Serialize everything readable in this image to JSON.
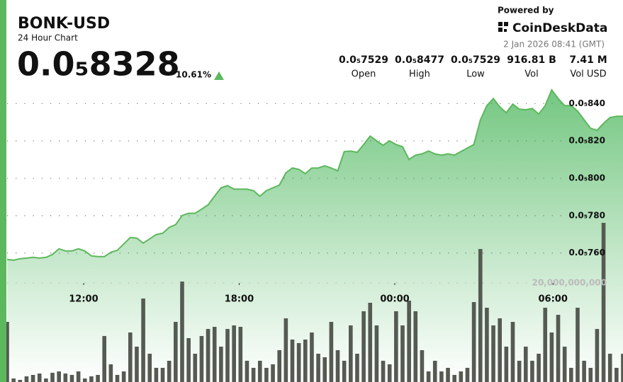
{
  "header": {
    "symbol": "BONK-USD",
    "subtitle": "24 Hour Chart",
    "price": "0.0₅8328",
    "change": "10.61%"
  },
  "brand": {
    "powered_by": "Powered by",
    "name": "CoinDeskData",
    "timestamp": "2 Jan 2026 08:41 (GMT)"
  },
  "stats": [
    {
      "value": "0.0₅7529",
      "label": "Open"
    },
    {
      "value": "0.0₅8477",
      "label": "High"
    },
    {
      "value": "0.0₅7529",
      "label": "Low"
    },
    {
      "value": "916.81 B",
      "label": "Vol"
    },
    {
      "value": "7.41 M",
      "label": "Vol USD"
    }
  ],
  "chart_data": {
    "type": "area",
    "grid": true,
    "xlim": [
      0,
      95
    ],
    "xticks": [
      {
        "value": 11.8,
        "label": "12:00"
      },
      {
        "value": 35.8,
        "label": "18:00"
      },
      {
        "value": 59.8,
        "label": "00:00"
      },
      {
        "value": 84.2,
        "label": "06:00"
      }
    ],
    "ylim": [
      6.91e-06,
      8.5e-06
    ],
    "yticks": [
      {
        "value": 7.6e-06,
        "label": "0.0₅760"
      },
      {
        "value": 7.8e-06,
        "label": "0.0₅780"
      },
      {
        "value": 8e-06,
        "label": "0.0₅800"
      },
      {
        "value": 8.2e-06,
        "label": "0.0₅820"
      },
      {
        "value": 8.4e-06,
        "label": "0.0₅840"
      }
    ],
    "y2lim": [
      0,
      60000000000
    ],
    "y2ticks": [
      {
        "value": 20000000000,
        "label": "20,000,000,000"
      }
    ],
    "series": [
      {
        "color": "#5cb85c",
        "values": [
          7.566e-06,
          7.562e-06,
          7.57e-06,
          7.573e-06,
          7.577e-06,
          7.573e-06,
          7.577e-06,
          7.592e-06,
          7.623e-06,
          7.611e-06,
          7.611e-06,
          7.623e-06,
          7.611e-06,
          7.585e-06,
          7.581e-06,
          7.581e-06,
          7.604e-06,
          7.615e-06,
          7.649e-06,
          7.683e-06,
          7.68e-06,
          7.653e-06,
          7.676e-06,
          7.699e-06,
          7.706e-06,
          7.737e-06,
          7.752e-06,
          7.801e-06,
          7.813e-06,
          7.813e-06,
          7.835e-06,
          7.858e-06,
          7.904e-06,
          7.949e-06,
          7.961e-06,
          7.942e-06,
          7.942e-06,
          7.942e-06,
          7.934e-06,
          7.904e-06,
          7.934e-06,
          7.949e-06,
          7.964e-06,
          8.029e-06,
          8.055e-06,
          8.048e-06,
          8.025e-06,
          8.055e-06,
          8.055e-06,
          8.067e-06,
          8.055e-06,
          8.04e-06,
          8.143e-06,
          8.146e-06,
          8.139e-06,
          8.181e-06,
          8.226e-06,
          8.2e-06,
          8.177e-06,
          8.2e-06,
          8.181e-06,
          8.169e-06,
          8.101e-06,
          8.124e-06,
          8.131e-06,
          8.146e-06,
          8.131e-06,
          8.124e-06,
          8.131e-06,
          8.124e-06,
          8.143e-06,
          8.162e-06,
          8.181e-06,
          8.313e-06,
          8.389e-06,
          8.427e-06,
          8.382e-06,
          8.351e-06,
          8.397e-06,
          8.37e-06,
          8.367e-06,
          8.374e-06,
          8.344e-06,
          8.389e-06,
          8.473e-06,
          8.427e-06,
          8.389e-06,
          8.389e-06,
          8.359e-06,
          8.313e-06,
          8.268e-06,
          8.257e-06,
          8.294e-06,
          8.325e-06,
          8.332e-06,
          8.332e-06
        ]
      },
      {
        "type": "bar",
        "axis": "y2",
        "color": "#555a52",
        "values": [
          12140000000,
          710000000,
          430000000,
          1140000000,
          1430000000,
          1710000000,
          710000000,
          1860000000,
          2140000000,
          1710000000,
          1430000000,
          2140000000,
          710000000,
          1140000000,
          1430000000,
          9290000000,
          3570000000,
          1430000000,
          2140000000,
          10000000000,
          7140000000,
          16860000000,
          5710000000,
          2860000000,
          2860000000,
          4290000000,
          12140000000,
          20290000000,
          8860000000,
          5710000000,
          9290000000,
          10710000000,
          11140000000,
          7140000000,
          10710000000,
          11430000000,
          11140000000,
          4290000000,
          2860000000,
          4290000000,
          2860000000,
          3570000000,
          6430000000,
          12860000000,
          8570000000,
          7860000000,
          8570000000,
          10000000000,
          5710000000,
          5000000000,
          12140000000,
          6430000000,
          4290000000,
          11430000000,
          5710000000,
          14290000000,
          16000000000,
          11430000000,
          4290000000,
          3570000000,
          14290000000,
          11430000000,
          16430000000,
          14290000000,
          6430000000,
          2140000000,
          4290000000,
          2140000000,
          2860000000,
          1430000000,
          2140000000,
          2860000000,
          16140000000,
          26860000000,
          15000000000,
          11430000000,
          12860000000,
          7140000000,
          12140000000,
          4290000000,
          7140000000,
          4290000000,
          5710000000,
          15000000000,
          10000000000,
          13570000000,
          7140000000,
          2860000000,
          15000000000,
          4290000000,
          2860000000,
          10710000000,
          32140000000,
          5710000000,
          2860000000,
          5710000000
        ]
      }
    ]
  }
}
